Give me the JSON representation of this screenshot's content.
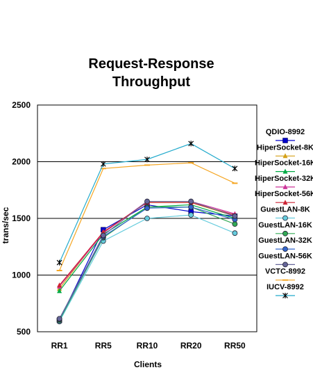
{
  "chart_data": {
    "type": "line",
    "title": [
      "Request-Response",
      "Throughput"
    ],
    "xlabel": "Clients",
    "ylabel": "trans/sec",
    "categories": [
      "RR1",
      "RR5",
      "RR10",
      "RR20",
      "RR50"
    ],
    "ylim": [
      500,
      2500
    ],
    "yticks": [
      500,
      1000,
      1500,
      2000,
      2500
    ],
    "grid": "horizontal",
    "legend_position": "right",
    "series": [
      {
        "name": "QDIO-8992",
        "color": "#0000cc",
        "marker": "square",
        "values": [
          600,
          1400,
          1620,
          1560,
          1520
        ]
      },
      {
        "name": "HiperSocket-8K",
        "color": "#d4a017",
        "marker": "triangle",
        "values": [
          880,
          1380,
          1640,
          1640,
          1520
        ]
      },
      {
        "name": "HiperSocket-16K",
        "color": "#00aa44",
        "marker": "triangle",
        "values": [
          860,
          1360,
          1600,
          1620,
          1500
        ]
      },
      {
        "name": "HiperSocket-32K",
        "color": "#cc3399",
        "marker": "triangle",
        "values": [
          900,
          1370,
          1650,
          1650,
          1540
        ]
      },
      {
        "name": "HiperSocket-56K",
        "color": "#cc2233",
        "marker": "triangle",
        "values": [
          910,
          1380,
          1640,
          1640,
          1530
        ]
      },
      {
        "name": "GuestLAN-8K",
        "color": "#66ccdd",
        "marker": "circle",
        "values": [
          590,
          1300,
          1500,
          1530,
          1370
        ]
      },
      {
        "name": "GuestLAN-16K",
        "color": "#33aa55",
        "marker": "circle",
        "values": [
          600,
          1330,
          1600,
          1600,
          1450
        ]
      },
      {
        "name": "GuestLAN-32K",
        "color": "#3366cc",
        "marker": "circle",
        "values": [
          610,
          1340,
          1590,
          1600,
          1490
        ]
      },
      {
        "name": "GuestLAN-56K",
        "color": "#666699",
        "marker": "circle",
        "values": [
          615,
          1350,
          1650,
          1650,
          1520
        ]
      },
      {
        "name": "VCTC-8992",
        "color": "#f5a623",
        "marker": "dash",
        "values": [
          1040,
          1940,
          1970,
          1990,
          1810
        ]
      },
      {
        "name": "IUCV-8992",
        "color": "#22aacc",
        "marker": "star",
        "values": [
          1110,
          1980,
          2020,
          2160,
          1940
        ]
      }
    ]
  }
}
